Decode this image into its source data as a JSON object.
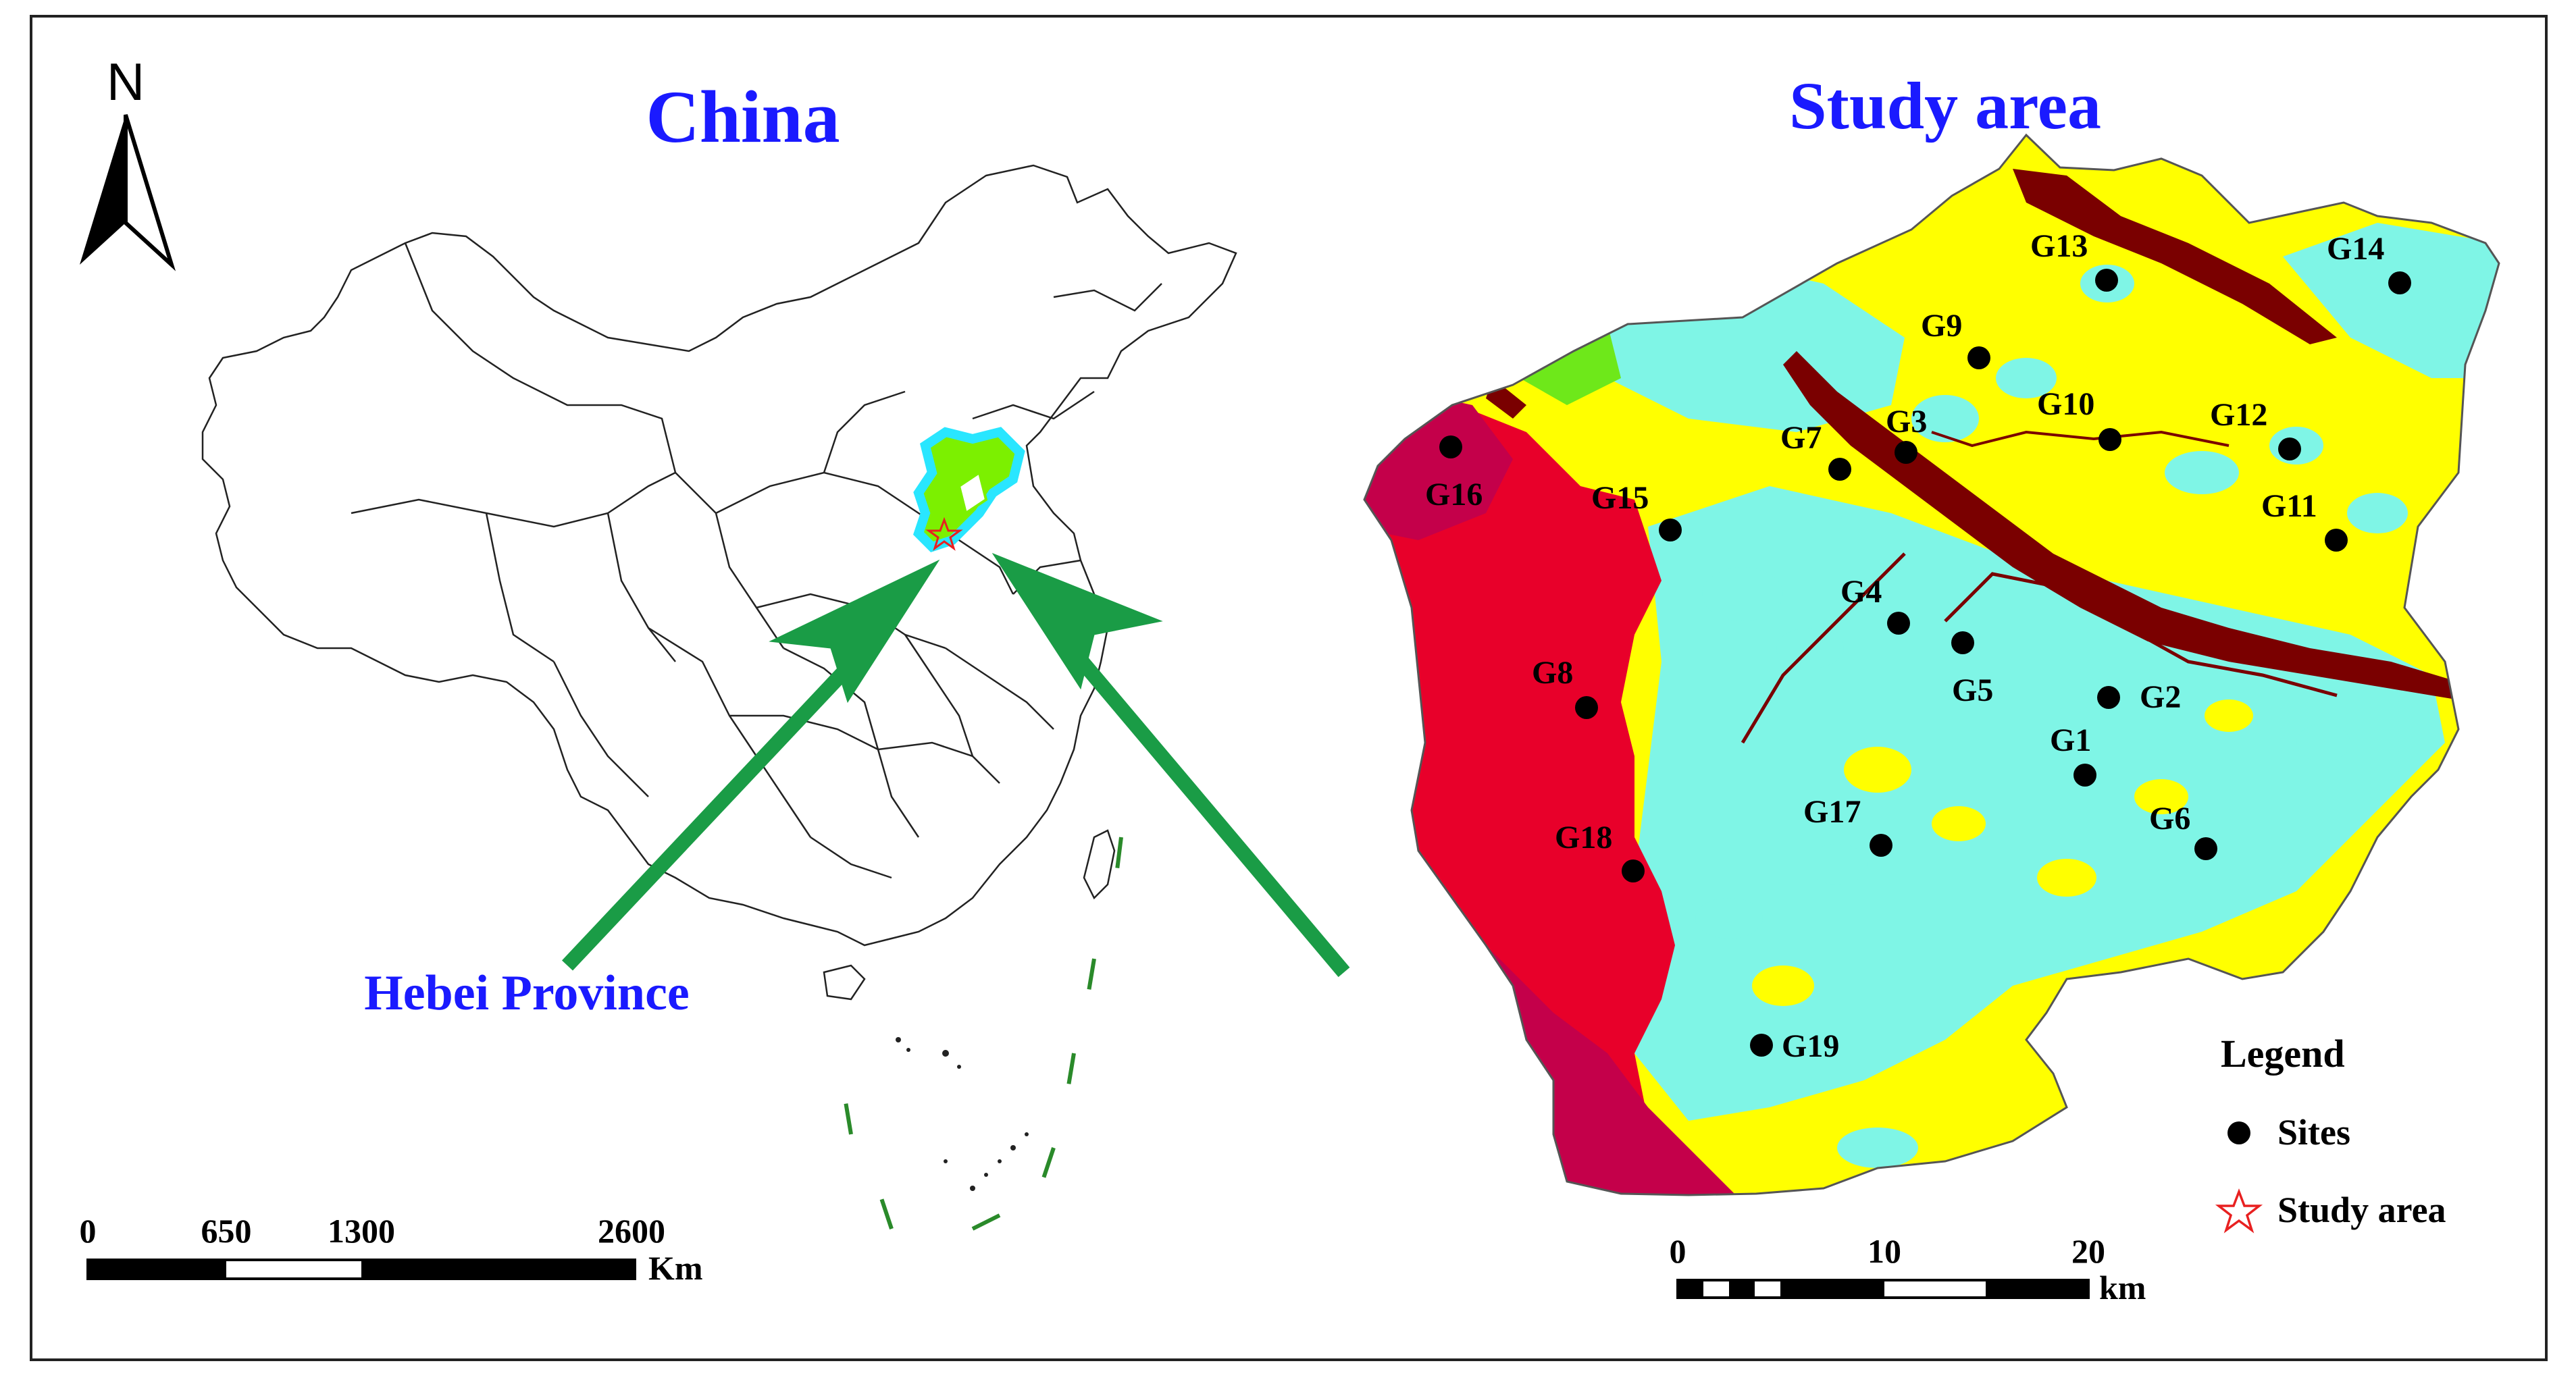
{
  "north_arrow": {
    "label": "N"
  },
  "china_panel": {
    "title": "China",
    "callout_label": "Hebei Province",
    "scale": {
      "ticks": [
        "0",
        "650",
        "1300",
        "2600"
      ],
      "unit": "Km"
    }
  },
  "study_panel": {
    "title": "Study area",
    "scale": {
      "ticks": [
        "0",
        "10",
        "20"
      ],
      "unit": "km"
    },
    "sites": [
      "G1",
      "G2",
      "G3",
      "G4",
      "G5",
      "G6",
      "G7",
      "G8",
      "G9",
      "G10",
      "G11",
      "G12",
      "G13",
      "G14",
      "G15",
      "G16",
      "G17",
      "G18",
      "G19"
    ]
  },
  "legend": {
    "title": "Legend",
    "items": [
      {
        "label": "Sites",
        "symbol": "black-dot"
      },
      {
        "label": "Study area",
        "symbol": "red-star-outline"
      }
    ]
  },
  "colors": {
    "title_blue": "#1a1aff",
    "hebei_fill": "#7cf000",
    "hebei_outline": "#29e6ff",
    "arrow_green": "#1a9c46",
    "land_yellow": "#ffff00",
    "land_cyan": "#7ff5e6",
    "land_red": "#e8002a",
    "land_crimson": "#c4004a",
    "river_brown": "#7a0000",
    "patch_green": "#6ee81a"
  }
}
